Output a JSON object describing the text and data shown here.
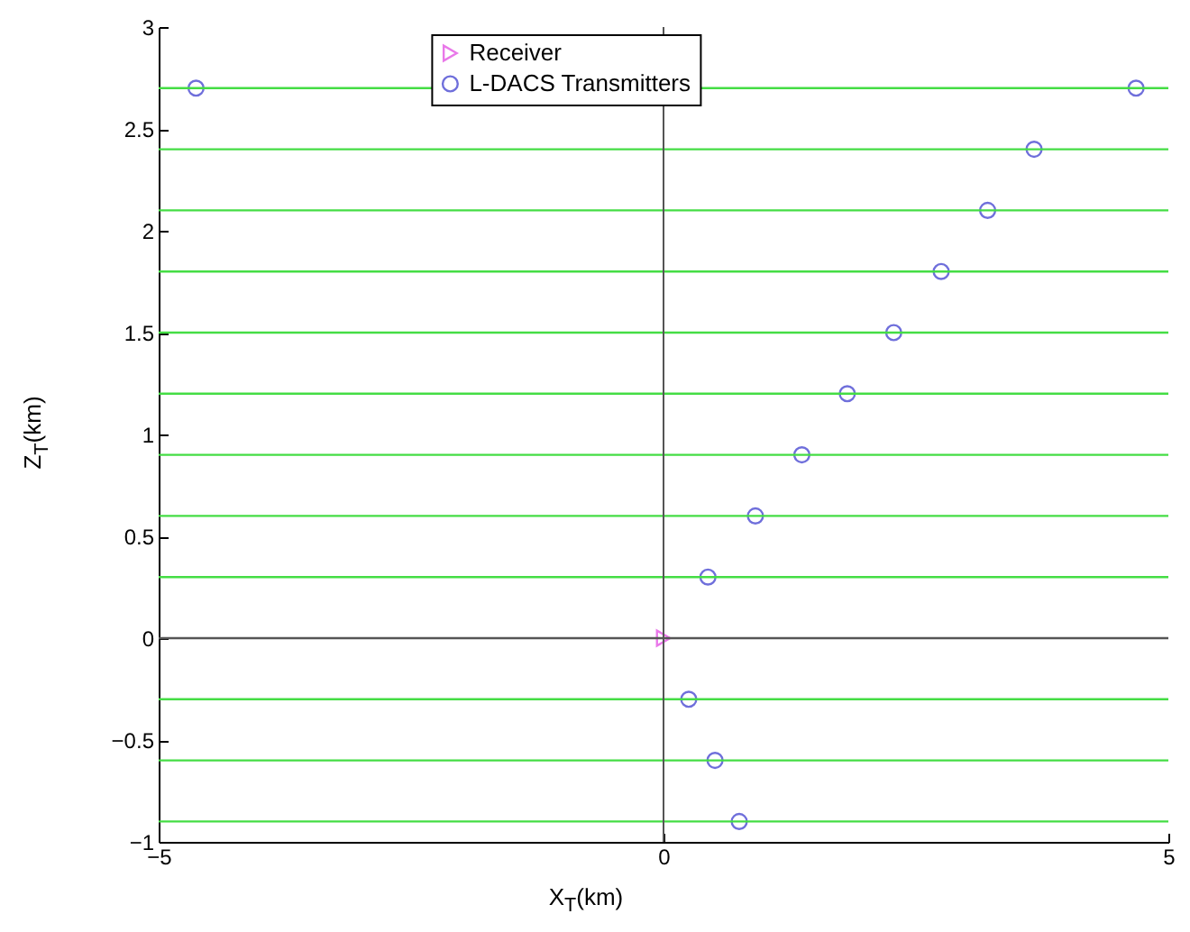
{
  "chart_data": {
    "type": "scatter",
    "xlabel": "X$_{T}$(km)",
    "ylabel": "Z$_{T}$(km)",
    "xlim": [
      -5,
      5
    ],
    "xticks": [
      -5,
      0,
      5
    ],
    "ylim": [
      -1,
      3
    ],
    "yticks": [
      -1,
      -0.5,
      0,
      0.5,
      1,
      1.5,
      2,
      2.5,
      3
    ],
    "grid": false,
    "legend": "top",
    "series": [
      {
        "name": "Receiver",
        "color": "#e040e0",
        "marker": "triangle-right",
        "x": [
          0
        ],
        "values": [
          0
        ]
      },
      {
        "name": "L-DACS Transmitters",
        "color": "#3333cc",
        "marker": "circle",
        "x": [
          -4.63,
          4.68,
          3.67,
          3.21,
          2.75,
          2.28,
          1.82,
          1.37,
          0.91,
          0.44,
          0.25,
          0.51,
          0.75
        ],
        "values": [
          2.7,
          2.7,
          2.4,
          2.1,
          1.8,
          1.5,
          1.2,
          0.9,
          0.6,
          0.3,
          -0.3,
          -0.6,
          -0.9
        ]
      }
    ],
    "ref_lines": [
      {
        "axis": "x",
        "value": 0,
        "color": "#555555"
      },
      {
        "axis": "y",
        "value": 0,
        "color": "#555555"
      },
      {
        "axis": "y",
        "value": 2.7,
        "color": "#44dd44"
      },
      {
        "axis": "y",
        "value": 2.4,
        "color": "#44dd44"
      },
      {
        "axis": "y",
        "value": 2.1,
        "color": "#44dd44"
      },
      {
        "axis": "y",
        "value": 1.8,
        "color": "#44dd44"
      },
      {
        "axis": "y",
        "value": 1.5,
        "color": "#44dd44"
      },
      {
        "axis": "y",
        "value": 1.2,
        "color": "#44dd44"
      },
      {
        "axis": "y",
        "value": 0.9,
        "color": "#44dd44"
      },
      {
        "axis": "y",
        "value": 0.6,
        "color": "#44dd44"
      },
      {
        "axis": "y",
        "value": 0.3,
        "color": "#44dd44"
      },
      {
        "axis": "y",
        "value": -0.3,
        "color": "#44dd44"
      },
      {
        "axis": "y",
        "value": -0.6,
        "color": "#44dd44"
      },
      {
        "axis": "y",
        "value": -0.9,
        "color": "#44dd44"
      }
    ]
  }
}
